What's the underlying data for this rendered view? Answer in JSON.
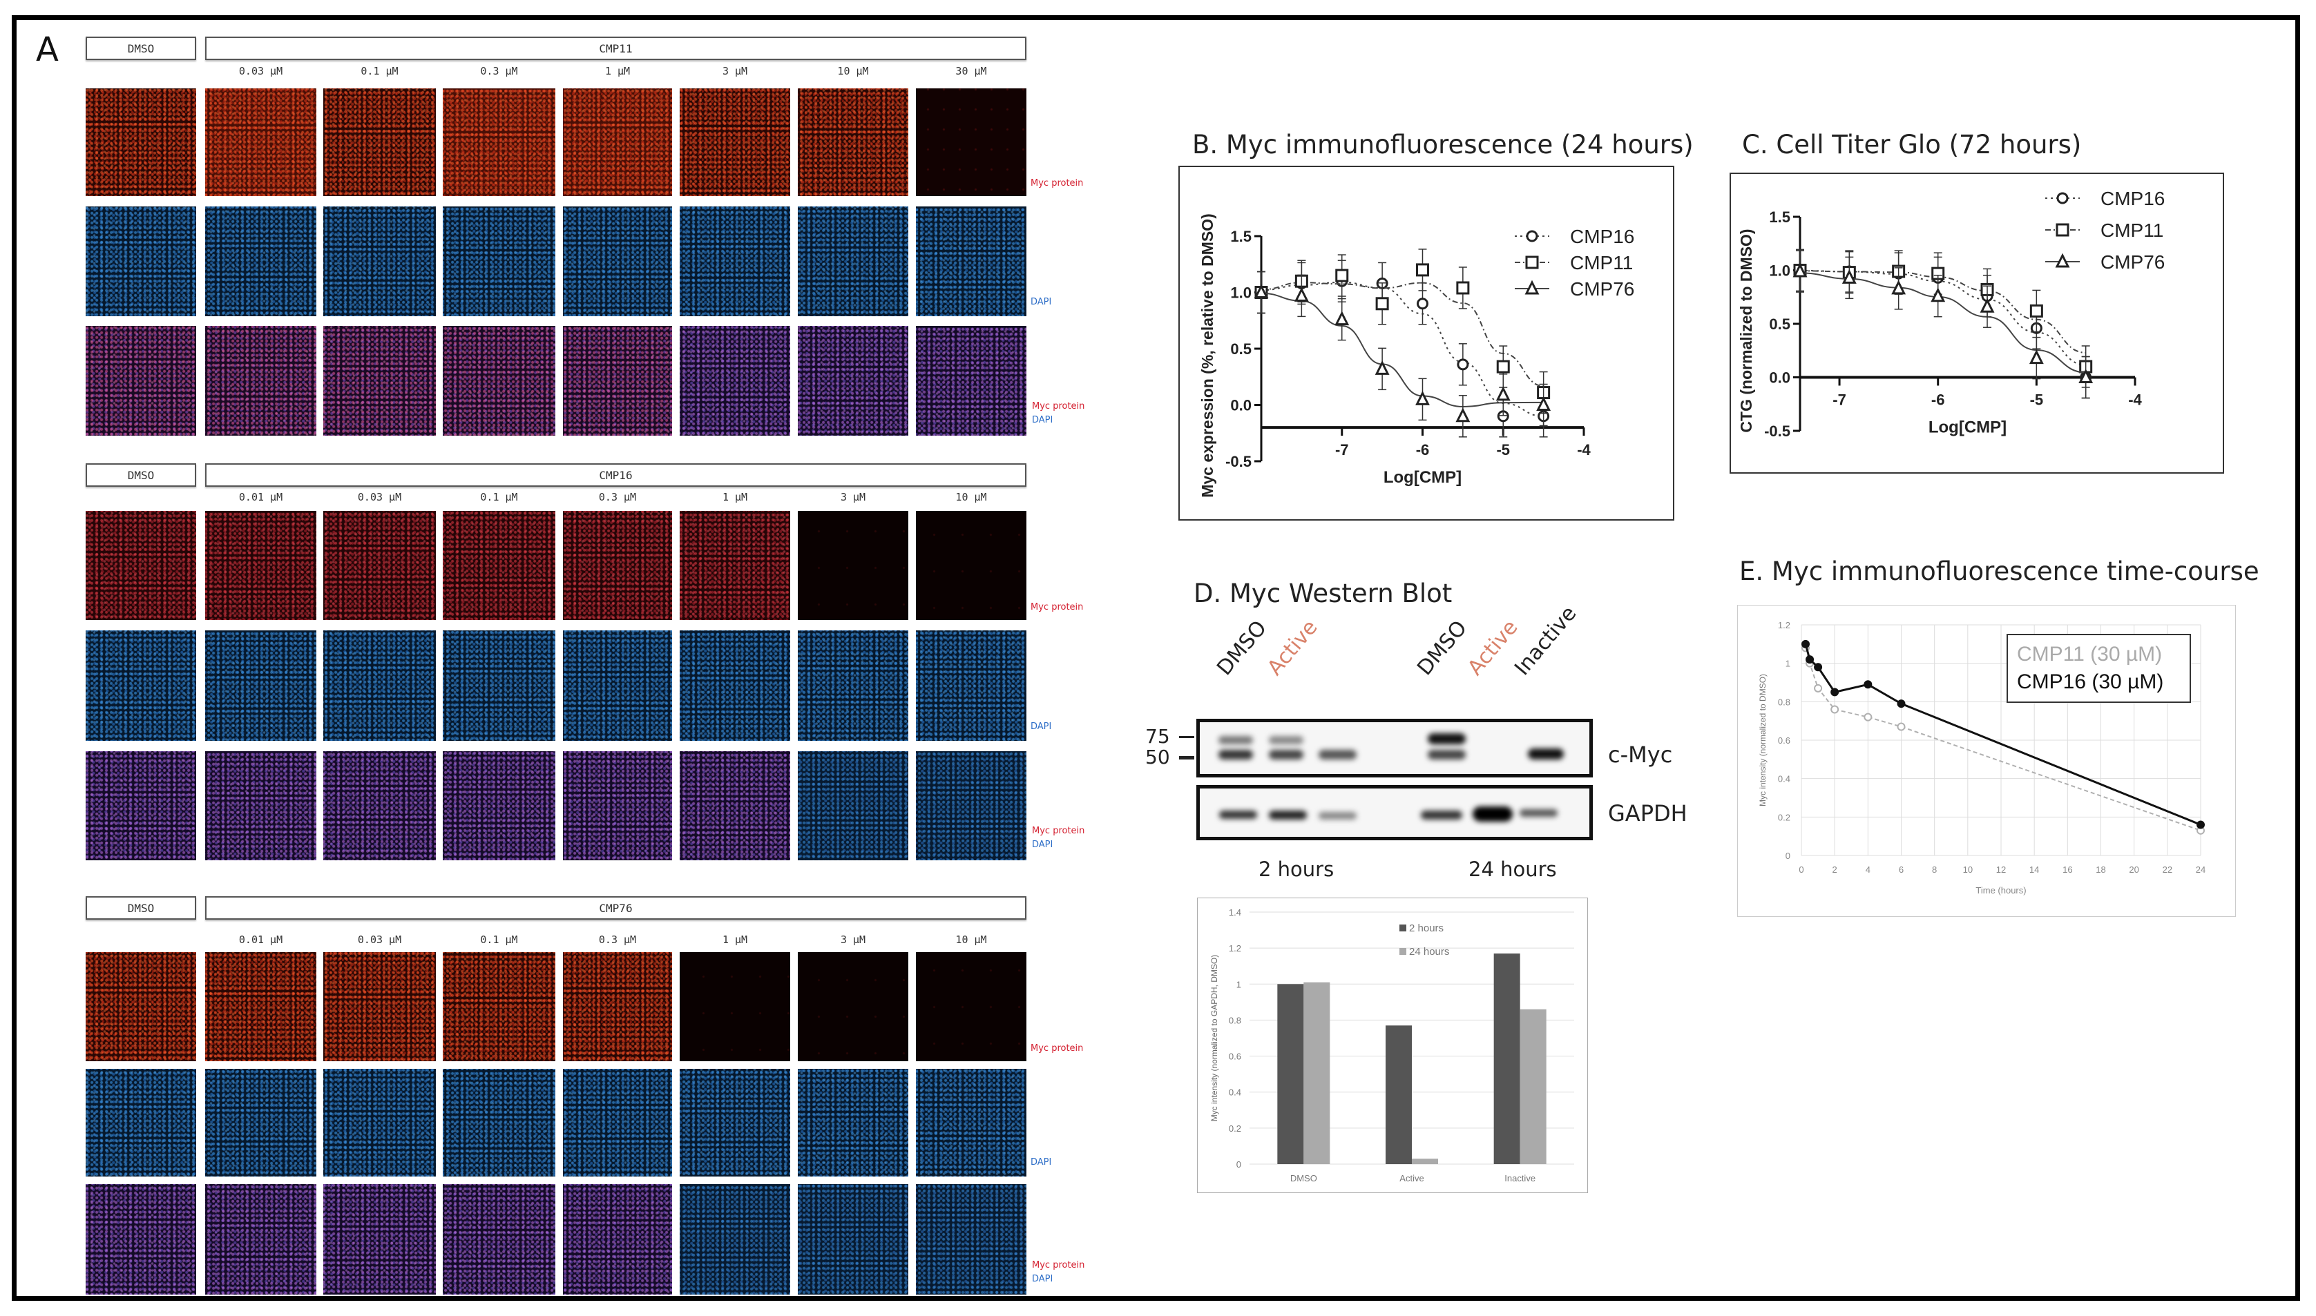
{
  "figure": {
    "panel_a_letter": "A",
    "panel_a": {
      "sections": [
        {
          "control_label": "DMSO",
          "compound_label": "CMP11",
          "concentrations": [
            "0.03 µM",
            "0.1 µM",
            "0.3 µM",
            "1 µM",
            "3 µM",
            "10 µM",
            "30 µM"
          ],
          "row_labels": {
            "myc": "Myc protein",
            "dapi": "DAPI",
            "merge_myc": "Myc protein",
            "merge_dapi": "DAPI"
          }
        },
        {
          "control_label": "DMSO",
          "compound_label": "CMP16",
          "concentrations": [
            "0.01 µM",
            "0.03 µM",
            "0.1 µM",
            "0.3 µM",
            "1 µM",
            "3 µM",
            "10 µM"
          ],
          "row_labels": {
            "myc": "Myc protein",
            "dapi": "DAPI",
            "merge_myc": "Myc protein",
            "merge_dapi": "DAPI"
          }
        },
        {
          "control_label": "DMSO",
          "compound_label": "CMP76",
          "concentrations": [
            "0.01 µM",
            "0.03 µM",
            "0.1 µM",
            "0.3 µM",
            "1 µM",
            "3 µM",
            "10 µM"
          ],
          "row_labels": {
            "myc": "Myc protein",
            "dapi": "DAPI",
            "merge_myc": "Myc protein",
            "merge_dapi": "DAPI"
          }
        }
      ],
      "colors": {
        "myc_label": "#d42030",
        "dapi_label": "#2f6fc8"
      }
    },
    "panel_b": {
      "title": "B. Myc immunofluorescence (24 hours)"
    },
    "panel_c": {
      "title": "C. Cell Titer Glo (72 hours)"
    },
    "panel_d": {
      "title": "D. Myc Western Blot",
      "lanes": [
        {
          "label": "DMSO",
          "color": "#222222"
        },
        {
          "label": "Active",
          "color": "#d9826a"
        },
        {
          "label": "DMSO",
          "color": "#222222"
        },
        {
          "label": "Active",
          "color": "#d9826a"
        },
        {
          "label": "Inactive",
          "color": "#222222"
        }
      ],
      "markers": [
        "75",
        "50"
      ],
      "blot_labels": [
        "c-Myc",
        "GAPDH"
      ],
      "timepoints": [
        "2 hours",
        "24 hours"
      ]
    },
    "panel_e": {
      "title": "E. Myc immunofluorescence  time-course"
    }
  },
  "chart_data": [
    {
      "id": "B",
      "type": "scatter",
      "title": "B. Myc immunofluorescence (24 hours)",
      "xlabel": "Log[CMP]",
      "ylabel": "Myc expression (%, relative to DMSO)",
      "xlim": [
        -8,
        -4
      ],
      "ylim": [
        -0.5,
        1.5
      ],
      "xticks": [
        "-7",
        "-6",
        "-5",
        "-4"
      ],
      "yticks": [
        "-0.5",
        "0.0",
        "0.5",
        "1.0",
        "1.5"
      ],
      "legend": [
        "CMP16",
        "CMP11",
        "CMP76"
      ],
      "legend_position": "upper right",
      "fit": "sigmoidal dose-response curves",
      "series": [
        {
          "name": "CMP16",
          "marker": "circle",
          "line": "dotted",
          "x": [
            -8,
            -7.5,
            -7,
            -6.5,
            -6,
            -5.5,
            -5,
            -4.5
          ],
          "y": [
            1.0,
            1.08,
            1.1,
            1.08,
            0.9,
            0.36,
            -0.1,
            -0.1
          ]
        },
        {
          "name": "CMP11",
          "marker": "square",
          "line": "dash-dot",
          "x": [
            -8,
            -7.5,
            -7,
            -6.5,
            -6,
            -5.5,
            -5,
            -4.5
          ],
          "y": [
            1.0,
            1.1,
            1.15,
            0.9,
            1.2,
            1.04,
            0.34,
            0.11
          ]
        },
        {
          "name": "CMP76",
          "marker": "triangle",
          "line": "solid",
          "x": [
            -8,
            -7.5,
            -7,
            -6.5,
            -6,
            -5.5,
            -5,
            -4.5
          ],
          "y": [
            1.0,
            0.97,
            0.76,
            0.32,
            0.05,
            -0.1,
            0.09,
            0.0
          ]
        }
      ]
    },
    {
      "id": "C",
      "type": "scatter",
      "title": "C. Cell Titer Glo (72 hours)",
      "xlabel": "Log[CMP]",
      "ylabel": "CTG (normalized to DMSO)",
      "xlim": [
        -7.4,
        -4
      ],
      "ylim": [
        -0.5,
        1.5
      ],
      "xticks": [
        "-7",
        "-6",
        "-5",
        "-4"
      ],
      "yticks": [
        "-0.5",
        "0.0",
        "0.5",
        "1.0",
        "1.5"
      ],
      "legend": [
        "CMP16",
        "CMP11",
        "CMP76"
      ],
      "legend_position": "upper right",
      "series": [
        {
          "name": "CMP16",
          "marker": "circle",
          "line": "dotted",
          "x": [
            -7.4,
            -6.9,
            -6.4,
            -6.0,
            -5.5,
            -5.0,
            -4.5
          ],
          "y": [
            1.0,
            0.99,
            0.97,
            0.93,
            0.76,
            0.46,
            0.0
          ]
        },
        {
          "name": "CMP11",
          "marker": "square",
          "line": "dash-dot",
          "x": [
            -7.4,
            -6.9,
            -6.4,
            -6.0,
            -5.5,
            -5.0,
            -4.5
          ],
          "y": [
            1.0,
            0.98,
            0.99,
            0.97,
            0.82,
            0.62,
            0.1
          ]
        },
        {
          "name": "CMP76",
          "marker": "triangle",
          "line": "solid",
          "x": [
            -7.4,
            -6.9,
            -6.4,
            -6.0,
            -5.5,
            -5.0,
            -4.5
          ],
          "y": [
            0.99,
            0.93,
            0.83,
            0.76,
            0.66,
            0.18,
            0.0
          ]
        }
      ]
    },
    {
      "id": "D-quant",
      "type": "bar",
      "title": "",
      "xlabel": "",
      "ylabel": "Myc intensity (normalized to GAPDH, DMSO)",
      "categories": [
        "DMSO",
        "Active",
        "Inactive"
      ],
      "ylim": [
        0,
        1.4
      ],
      "yticks": [
        "0",
        "0.2",
        "0.4",
        "0.6",
        "0.8",
        "1",
        "1.2",
        "1.4"
      ],
      "grid": true,
      "legend_position": "top center",
      "series": [
        {
          "name": "2 hours",
          "color": "#555555",
          "values": [
            1.0,
            0.77,
            1.17
          ]
        },
        {
          "name": "24 hours",
          "color": "#aaaaaa",
          "values": [
            1.01,
            0.03,
            0.86
          ]
        }
      ]
    },
    {
      "id": "E",
      "type": "line",
      "title": "E. Myc immunofluorescence  time-course",
      "xlabel": "Time (hours)",
      "ylabel": "Myc intensity (normalized to DMSO)",
      "xlim": [
        0,
        24
      ],
      "ylim": [
        0,
        1.2
      ],
      "xticks": [
        "0",
        "2",
        "4",
        "6",
        "8",
        "10",
        "12",
        "14",
        "16",
        "18",
        "20",
        "22",
        "24"
      ],
      "yticks": [
        "0",
        "0.2",
        "0.4",
        "0.6",
        "0.8",
        "1",
        "1.2"
      ],
      "grid": true,
      "legend_position": "upper right",
      "series": [
        {
          "name": "CMP11 (30 µM)",
          "color": "#b0b0b0",
          "line": "dashed",
          "x": [
            0.25,
            0.5,
            1,
            2,
            4,
            6,
            24
          ],
          "y": [
            1.08,
            1.0,
            0.87,
            0.76,
            0.72,
            0.67,
            0.13
          ]
        },
        {
          "name": "CMP16 (30 µM)",
          "color": "#111111",
          "line": "solid",
          "x": [
            0.25,
            0.5,
            1,
            2,
            4,
            6,
            24
          ],
          "y": [
            1.1,
            1.02,
            0.98,
            0.85,
            0.89,
            0.79,
            0.16
          ]
        }
      ]
    }
  ]
}
